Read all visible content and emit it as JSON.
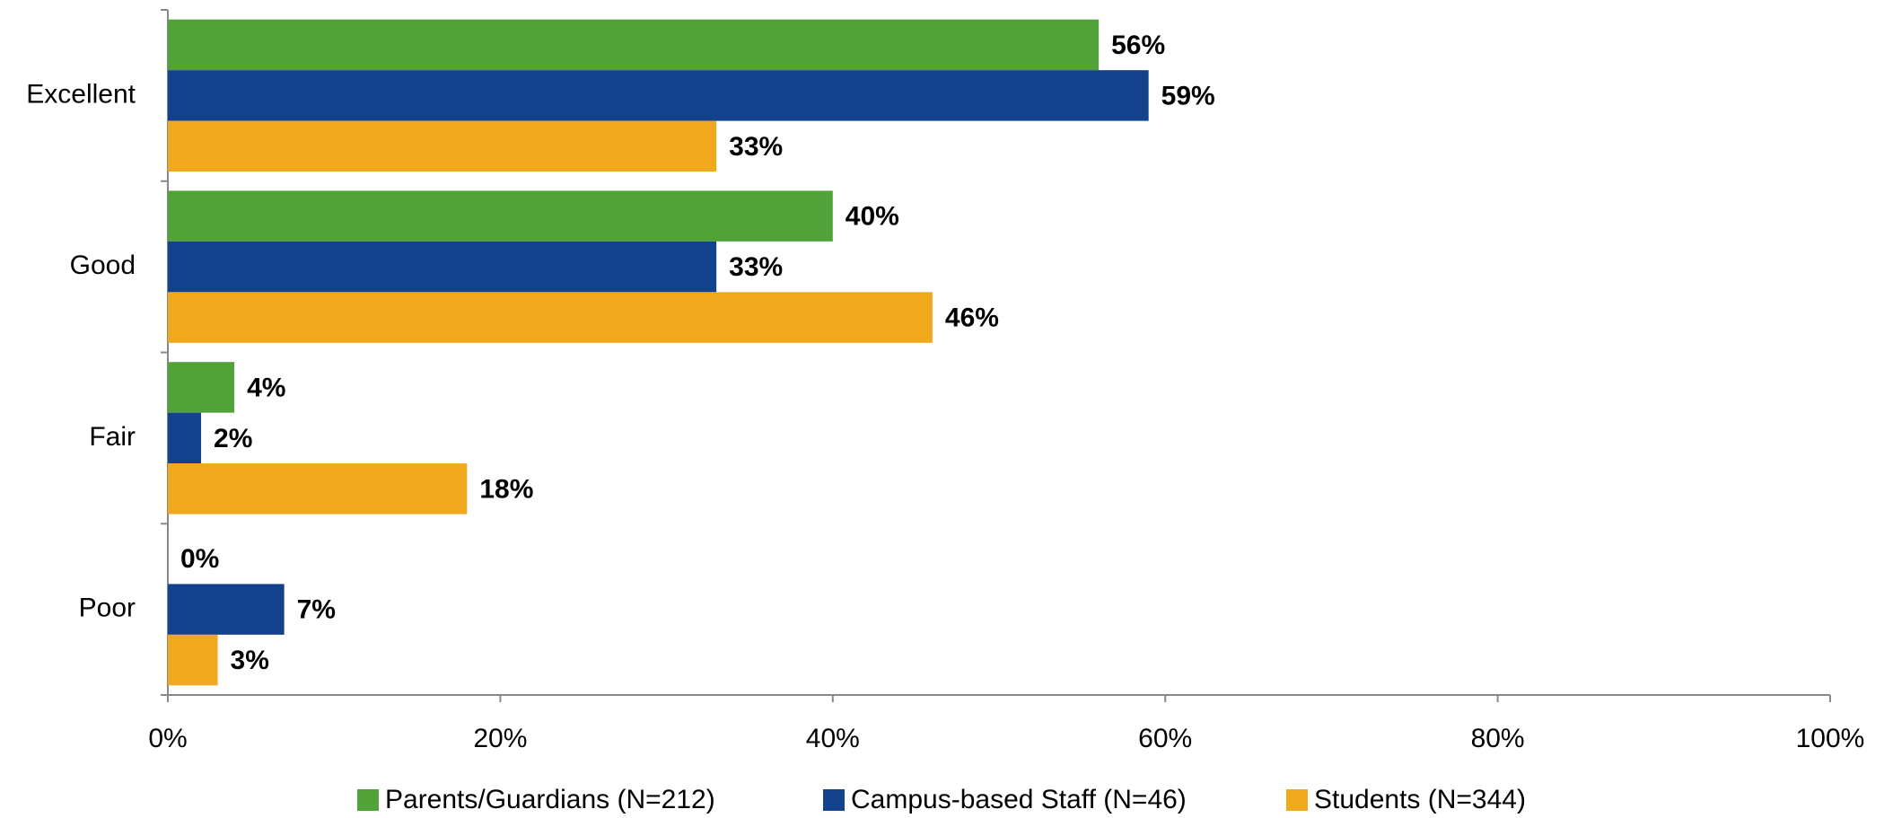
{
  "chart_data": {
    "type": "barh",
    "categories": [
      "Excellent",
      "Good",
      "Fair",
      "Poor"
    ],
    "series": [
      {
        "name": "Parents/Guardians (N=212)",
        "color": "#52a23a",
        "values": [
          56,
          40,
          4,
          0
        ],
        "value_labels": [
          "56%",
          "40%",
          "4%",
          "0%"
        ]
      },
      {
        "name": "Campus-based Staff (N=46)",
        "color": "#14418b",
        "values": [
          59,
          33,
          2,
          7
        ],
        "value_labels": [
          "59%",
          "33%",
          "2%",
          "7%"
        ]
      },
      {
        "name": "Students (N=344)",
        "color": "#f0a91e",
        "values": [
          33,
          46,
          18,
          3
        ],
        "value_labels": [
          "33%",
          "46%",
          "18%",
          "3%"
        ]
      }
    ],
    "xlim": [
      0,
      100
    ],
    "xticks": [
      {
        "value": 0,
        "label": "0%"
      },
      {
        "value": 20,
        "label": "20%"
      },
      {
        "value": 40,
        "label": "40%"
      },
      {
        "value": 60,
        "label": "60%"
      },
      {
        "value": 80,
        "label": "80%"
      },
      {
        "value": 100,
        "label": "100%"
      }
    ],
    "legend": "bottom"
  }
}
